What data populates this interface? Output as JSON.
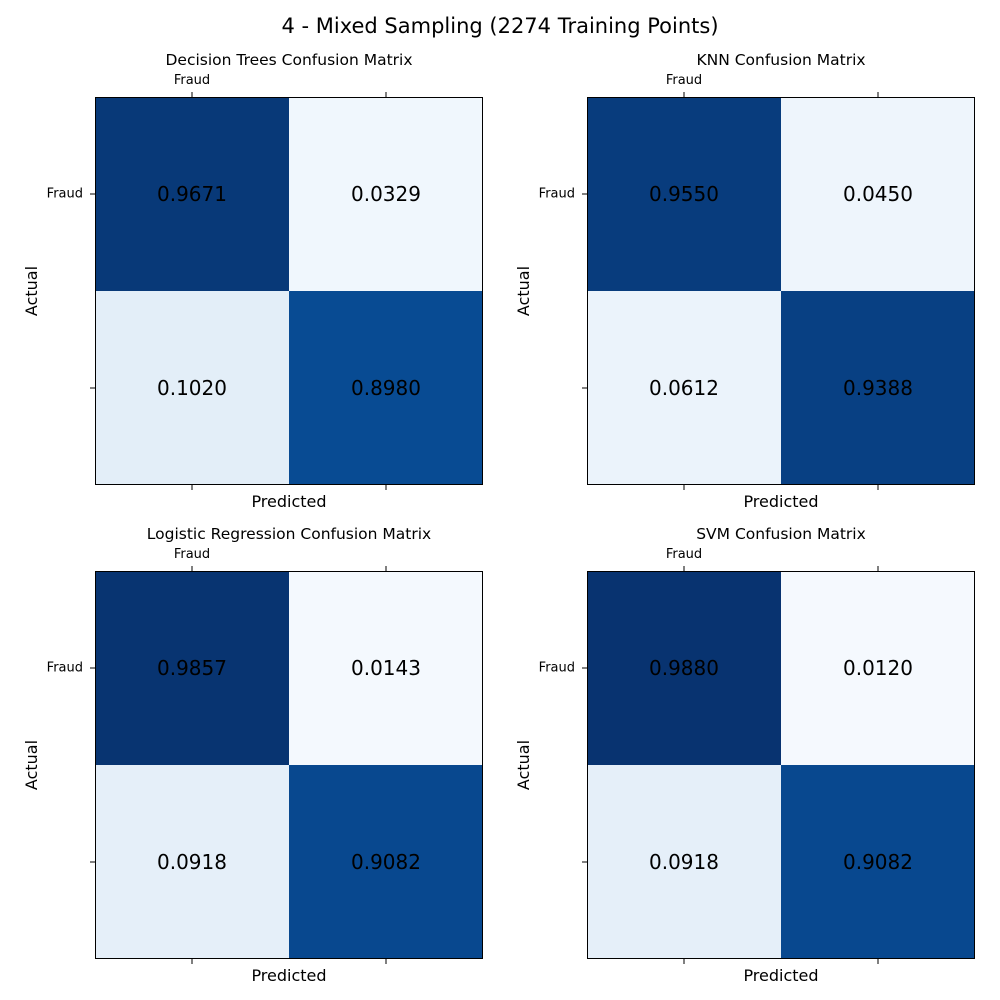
{
  "figure": {
    "suptitle": "4 - Mixed Sampling (2274 Training Points)"
  },
  "colors": {
    "cmap": "Blues",
    "cmap_low": "#f7fbff",
    "cmap_high": "#08306b",
    "text": "#000000"
  },
  "chart_data": [
    {
      "type": "heatmap",
      "title": "Decision Trees Confusion Matrix",
      "xlabel": "Predicted",
      "ylabel": "Actual",
      "x_tick_labels": [
        "Fraud",
        ""
      ],
      "y_tick_labels": [
        "Fraud",
        ""
      ],
      "matrix": [
        [
          0.9671,
          0.0329
        ],
        [
          0.102,
          0.898
        ]
      ],
      "cell_labels": [
        [
          "0.9671",
          "0.0329"
        ],
        [
          "0.1020",
          "0.8980"
        ]
      ],
      "color_range": [
        0,
        1
      ]
    },
    {
      "type": "heatmap",
      "title": "KNN Confusion Matrix",
      "xlabel": "Predicted",
      "ylabel": "Actual",
      "x_tick_labels": [
        "Fraud",
        ""
      ],
      "y_tick_labels": [
        "Fraud",
        ""
      ],
      "matrix": [
        [
          0.955,
          0.045
        ],
        [
          0.0612,
          0.9388
        ]
      ],
      "cell_labels": [
        [
          "0.9550",
          "0.0450"
        ],
        [
          "0.0612",
          "0.9388"
        ]
      ],
      "color_range": [
        0,
        1
      ]
    },
    {
      "type": "heatmap",
      "title": "Logistic Regression Confusion Matrix",
      "xlabel": "Predicted",
      "ylabel": "Actual",
      "x_tick_labels": [
        "Fraud",
        ""
      ],
      "y_tick_labels": [
        "Fraud",
        ""
      ],
      "matrix": [
        [
          0.9857,
          0.0143
        ],
        [
          0.0918,
          0.9082
        ]
      ],
      "cell_labels": [
        [
          "0.9857",
          "0.0143"
        ],
        [
          "0.0918",
          "0.9082"
        ]
      ],
      "color_range": [
        0,
        1
      ]
    },
    {
      "type": "heatmap",
      "title": "SVM Confusion Matrix",
      "xlabel": "Predicted",
      "ylabel": "Actual",
      "x_tick_labels": [
        "Fraud",
        ""
      ],
      "y_tick_labels": [
        "Fraud",
        ""
      ],
      "matrix": [
        [
          0.988,
          0.012
        ],
        [
          0.0918,
          0.9082
        ]
      ],
      "cell_labels": [
        [
          "0.9880",
          "0.0120"
        ],
        [
          "0.0918",
          "0.9082"
        ]
      ],
      "color_range": [
        0,
        1
      ]
    }
  ]
}
